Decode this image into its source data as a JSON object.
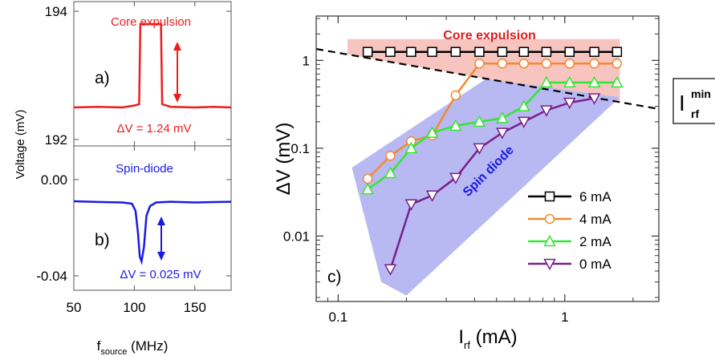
{
  "chart_data": [
    {
      "panel": "a)",
      "type": "line",
      "title": "Core expulsion",
      "xlabel_main": "f",
      "xlabel_sub": "source",
      "xlabel_unit": "(MHz)",
      "ylabel": "Voltage (mV)",
      "xlim": [
        50,
        180
      ],
      "ylim": [
        191.9,
        194.15
      ],
      "xticks": [
        50,
        100,
        150
      ],
      "xtick_labels": [
        "50",
        "100",
        "150"
      ],
      "yticks": [
        194,
        192
      ],
      "ytick_labels": [
        "194",
        "192"
      ],
      "annotation": "ΔV = 1.24 mV",
      "color": "#ee1c1c",
      "series": [
        {
          "x": [
            50,
            70,
            90,
            100,
            104,
            105,
            122,
            123,
            130,
            150,
            165,
            180
          ],
          "y": [
            192.5,
            192.51,
            192.5,
            192.53,
            192.55,
            193.8,
            193.8,
            192.55,
            192.51,
            192.5,
            192.51,
            192.5
          ]
        }
      ]
    },
    {
      "panel": "b)",
      "type": "line",
      "title": "Spin-diode",
      "ylabel": "Voltage (mV)",
      "xlim": [
        50,
        180
      ],
      "ylim": [
        -0.046,
        0.014
      ],
      "xticks": [
        50,
        100,
        150
      ],
      "yticks": [
        0.0,
        -0.04
      ],
      "ytick_labels": [
        "0.00",
        "-0.04"
      ],
      "annotation": "ΔV = 0.025 mV",
      "color": "#1a1ae6",
      "series": [
        {
          "x": [
            50,
            70,
            90,
            98,
            101,
            103,
            104.5,
            106,
            108,
            110,
            113,
            118,
            130,
            150,
            180
          ],
          "y": [
            -0.009,
            -0.0093,
            -0.0095,
            -0.01,
            -0.013,
            -0.022,
            -0.032,
            -0.034,
            -0.028,
            -0.015,
            -0.011,
            -0.0095,
            -0.0092,
            -0.0095,
            -0.0092
          ]
        }
      ]
    },
    {
      "panel": "c)",
      "type": "line",
      "xlabel_main": "I",
      "xlabel_sub": "rf",
      "xlabel_unit": "(mA)",
      "ylabel": "ΔV (mV)",
      "xscale": "log",
      "yscale": "log",
      "xlim": [
        0.08,
        2.6
      ],
      "ylim": [
        0.0018,
        3.2
      ],
      "xticks": [
        0.1,
        1
      ],
      "xtick_labels": [
        "0.1",
        "1"
      ],
      "yticks": [
        1,
        0.1,
        0.01
      ],
      "ytick_labels": [
        "1",
        "0.1",
        "0.01"
      ],
      "region_core_label": "Core expulsion",
      "region_spin_label": "Spin diode",
      "threshold_label_main": "I",
      "threshold_label_sup": "min",
      "threshold_label_sub": "rf",
      "threshold_line": {
        "x": [
          0.08,
          2.6
        ],
        "y": [
          1.35,
          0.28
        ]
      },
      "legend_position": "lower-right",
      "series": [
        {
          "name": "6 mA",
          "color": "#000000",
          "marker": "square",
          "x": [
            0.135,
            0.17,
            0.21,
            0.26,
            0.33,
            0.42,
            0.53,
            0.66,
            0.83,
            1.05,
            1.35,
            1.7
          ],
          "y": [
            1.25,
            1.25,
            1.25,
            1.25,
            1.25,
            1.25,
            1.25,
            1.25,
            1.25,
            1.25,
            1.25,
            1.25
          ]
        },
        {
          "name": "4 mA",
          "color": "#f28a30",
          "marker": "circle",
          "x": [
            0.135,
            0.17,
            0.21,
            0.26,
            0.33,
            0.42,
            0.53,
            0.66,
            0.83,
            1.05,
            1.35,
            1.7
          ],
          "y": [
            0.045,
            0.082,
            0.12,
            0.14,
            0.4,
            0.92,
            0.92,
            0.92,
            0.92,
            0.92,
            0.92,
            0.92
          ]
        },
        {
          "name": "2 mA",
          "color": "#33e633",
          "marker": "triangle-up",
          "x": [
            0.135,
            0.17,
            0.21,
            0.26,
            0.33,
            0.42,
            0.53,
            0.66,
            0.83,
            1.05,
            1.35,
            1.7
          ],
          "y": [
            0.034,
            0.052,
            0.1,
            0.15,
            0.18,
            0.2,
            0.22,
            0.3,
            0.56,
            0.56,
            0.56,
            0.56
          ]
        },
        {
          "name": "0 mA",
          "color": "#7a1f8a",
          "marker": "triangle-down",
          "x": [
            0.17,
            0.21,
            0.26,
            0.33,
            0.42,
            0.53,
            0.66,
            0.83,
            1.05,
            1.35
          ],
          "y": [
            0.0042,
            0.023,
            0.029,
            0.046,
            0.1,
            0.15,
            0.2,
            0.27,
            0.33,
            0.37
          ]
        }
      ]
    }
  ]
}
